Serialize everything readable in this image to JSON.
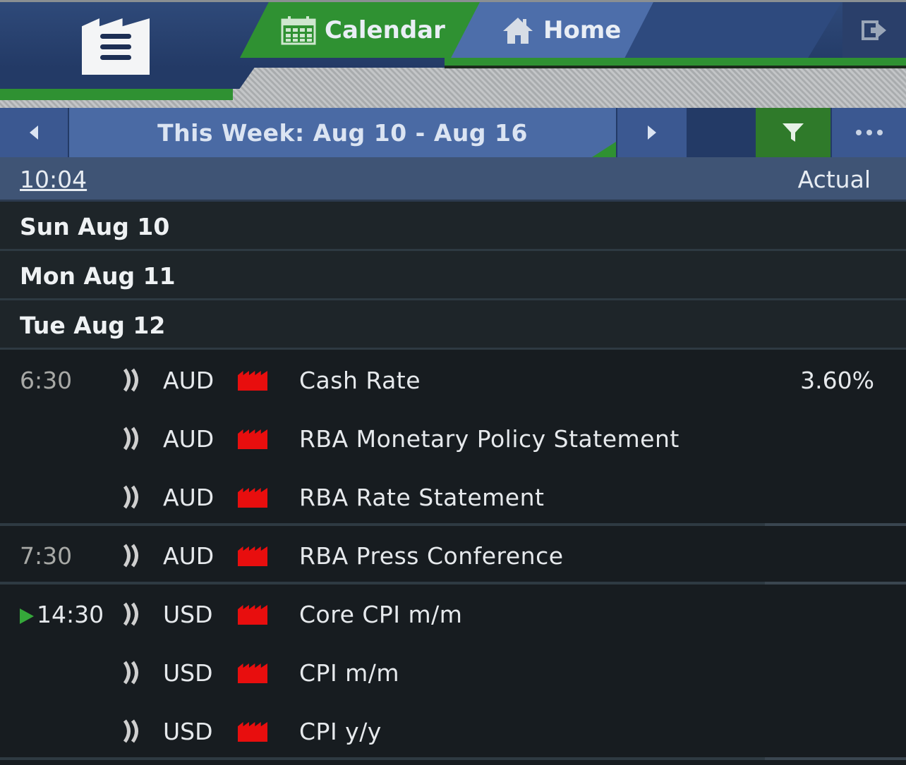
{
  "app": {
    "tabs": [
      {
        "label": "Calendar",
        "icon": "calendar-icon",
        "active": true
      },
      {
        "label": "Home",
        "icon": "home-icon",
        "active": false
      }
    ],
    "accent": "#2f9132",
    "nav_color": "#233a66"
  },
  "week_nav": {
    "title": "This Week: Aug 10 - Aug 16"
  },
  "header": {
    "time": "10:04",
    "actual_label": "Actual"
  },
  "days": [
    {
      "label": "Sun Aug 10"
    },
    {
      "label": "Mon Aug 11"
    },
    {
      "label": "Tue Aug 12"
    }
  ],
  "events": [
    {
      "time": "6:30",
      "currency": "AUD",
      "impact": "high",
      "name": "Cash Rate",
      "actual": "3.60%"
    },
    {
      "time": "",
      "currency": "AUD",
      "impact": "high",
      "name": "RBA Monetary Policy Statement",
      "actual": ""
    },
    {
      "time": "",
      "currency": "AUD",
      "impact": "high",
      "name": "RBA Rate Statement",
      "actual": ""
    },
    {
      "time": "7:30",
      "currency": "AUD",
      "impact": "high",
      "name": "RBA Press Conference",
      "actual": ""
    },
    {
      "time": "14:30",
      "currency": "USD",
      "impact": "high",
      "name": "Core CPI m/m",
      "actual": "",
      "is_next": true
    },
    {
      "time": "",
      "currency": "USD",
      "impact": "high",
      "name": "CPI m/m",
      "actual": ""
    },
    {
      "time": "",
      "currency": "USD",
      "impact": "high",
      "name": "CPI y/y",
      "actual": ""
    }
  ]
}
